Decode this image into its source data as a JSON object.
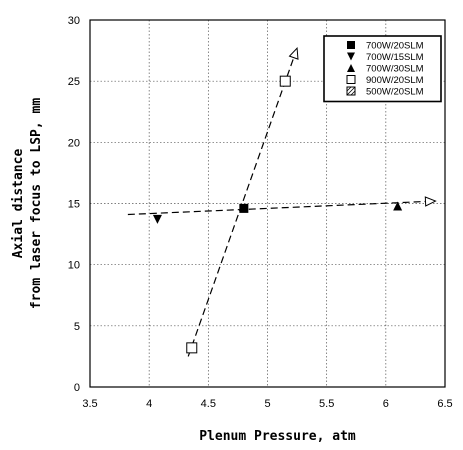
{
  "chart_data": {
    "type": "scatter",
    "xlabel": "Plenum Pressure, atm",
    "ylabel_lines": [
      "Axial distance",
      "from laser focus to LSP, mm"
    ],
    "xlim": [
      3.5,
      6.5
    ],
    "ylim": [
      0,
      30
    ],
    "x_ticks": [
      3.5,
      4,
      4.5,
      5,
      5.5,
      6,
      6.5
    ],
    "x_tick_labels": [
      "3.5",
      "4",
      "4.5",
      "5",
      "5.5",
      "6",
      "6.5"
    ],
    "y_ticks": [
      0,
      5,
      10,
      15,
      20,
      25,
      30
    ],
    "y_tick_labels": [
      "0",
      "5",
      "10",
      "15",
      "20",
      "25",
      "30"
    ],
    "grid": true,
    "legend_position": "top-right",
    "series": [
      {
        "name": "700W/20SLM",
        "marker": "square-filled",
        "points": [
          [
            4.8,
            14.6
          ]
        ]
      },
      {
        "name": "700W/15SLM",
        "marker": "triangle-down",
        "points": [
          [
            4.07,
            13.7
          ]
        ]
      },
      {
        "name": "700W/30SLM",
        "marker": "triangle-up",
        "points": [
          [
            6.1,
            14.8
          ]
        ]
      },
      {
        "name": "900W/20SLM",
        "marker": "square-open",
        "points": [
          [
            4.36,
            3.2
          ],
          [
            5.15,
            25.0
          ]
        ]
      },
      {
        "name": "500W/20SLM",
        "marker": "square-hatched",
        "points": []
      }
    ],
    "trend_lines": [
      {
        "from": [
          3.82,
          14.1
        ],
        "to": [
          6.42,
          15.2
        ],
        "style": "dashed",
        "arrowhead": "open"
      },
      {
        "from": [
          4.33,
          2.5
        ],
        "to": [
          5.25,
          27.7
        ],
        "style": "dashed",
        "arrowhead": "open"
      }
    ]
  }
}
